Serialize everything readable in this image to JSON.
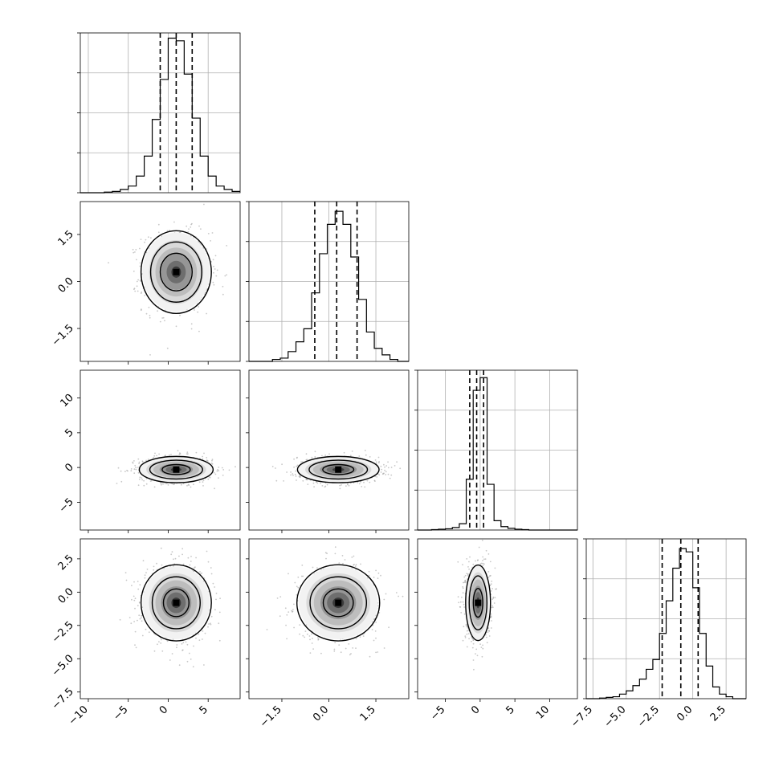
{
  "chart_data": {
    "type": "corner",
    "params": [
      {
        "range": [
          -11,
          9
        ],
        "ticks": [
          -10,
          -5,
          0,
          5
        ],
        "tick_labels": [
          "−10",
          "−5",
          "0",
          "5"
        ],
        "quantiles": [
          -1,
          1,
          3
        ],
        "hist": {
          "edges": [
            -11,
            -10,
            -9,
            -8,
            -7,
            -6,
            -5,
            -4,
            -3,
            -2,
            -1,
            0,
            1,
            2,
            3,
            4,
            5,
            6,
            7,
            8,
            9
          ],
          "counts": [
            0,
            0,
            0,
            1,
            2,
            5,
            10,
            25,
            55,
            110,
            170,
            232,
            228,
            178,
            112,
            55,
            25,
            10,
            5,
            2
          ],
          "max": 235
        }
      },
      {
        "range": [
          -2.55,
          2.55
        ],
        "ticks": [
          -1.5,
          0.0,
          1.5
        ],
        "tick_labels": [
          "−1.5",
          "0.0",
          "1.5"
        ],
        "quantiles": [
          -0.45,
          0.25,
          0.9
        ],
        "hist": {
          "edges": [
            -2.55,
            -2.3,
            -2.05,
            -1.8,
            -1.55,
            -1.3,
            -1.05,
            -0.8,
            -0.55,
            -0.3,
            -0.05,
            0.2,
            0.45,
            0.7,
            0.95,
            1.2,
            1.45,
            1.7,
            1.95,
            2.2,
            2.55
          ],
          "counts": [
            0,
            0,
            0,
            3,
            5,
            15,
            30,
            50,
            105,
            165,
            210,
            230,
            210,
            160,
            95,
            45,
            20,
            10,
            3,
            0
          ],
          "max": 240
        }
      },
      {
        "range": [
          -9,
          14
        ],
        "ticks": [
          -5,
          0,
          5,
          10
        ],
        "tick_labels": [
          "−5",
          "0",
          "5",
          "10"
        ],
        "quantiles": [
          -1.5,
          -0.5,
          0.5
        ],
        "hist": {
          "edges": [
            -9,
            -8,
            -7,
            -6,
            -5,
            -4,
            -3,
            -2,
            -1,
            0,
            1,
            2,
            3,
            4,
            5,
            6,
            7,
            8,
            9,
            10,
            11,
            12,
            13,
            14
          ],
          "counts": [
            0,
            0,
            1,
            2,
            3,
            6,
            15,
            120,
            330,
            360,
            108,
            22,
            8,
            4,
            2,
            1,
            0,
            0,
            0,
            0,
            0,
            0,
            0
          ],
          "max": 370
        }
      },
      {
        "range": [
          -8,
          4
        ],
        "ticks": [
          -7.5,
          -5.0,
          -2.5,
          0.0,
          2.5
        ],
        "tick_labels": [
          "−7.5",
          "−5.0",
          "−2.5",
          "0.0",
          "2.5"
        ],
        "quantiles": [
          -2.3,
          -0.9,
          0.4
        ],
        "hist": {
          "edges": [
            -8,
            -7.5,
            -7,
            -6.5,
            -6,
            -5.5,
            -5,
            -4.5,
            -4,
            -3.5,
            -3,
            -2.5,
            -2,
            -1.5,
            -1,
            -0.5,
            0,
            0.5,
            1,
            1.5,
            2,
            2.5,
            3,
            3.5,
            4
          ],
          "counts": [
            0,
            0,
            1,
            2,
            3,
            7,
            12,
            20,
            30,
            45,
            60,
            100,
            150,
            200,
            230,
            225,
            170,
            100,
            50,
            18,
            7,
            3,
            0,
            0
          ],
          "max": 240
        }
      }
    ],
    "pairs": [
      {
        "row": 1,
        "col": 0,
        "mean": [
          1.0,
          0.3
        ],
        "sd": [
          2.0,
          0.6
        ],
        "levels": [
          1.0,
          1.6,
          2.2
        ]
      },
      {
        "row": 2,
        "col": 0,
        "mean": [
          1.0,
          -0.3
        ],
        "sd": [
          2.2,
          0.9
        ],
        "levels": [
          0.8,
          1.5,
          2.1
        ]
      },
      {
        "row": 2,
        "col": 1,
        "mean": [
          0.3,
          -0.3
        ],
        "sd": [
          0.62,
          0.9
        ],
        "levels": [
          0.8,
          1.5,
          2.1
        ]
      },
      {
        "row": 3,
        "col": 0,
        "mean": [
          1.0,
          -0.8
        ],
        "sd": [
          2.0,
          1.3
        ],
        "levels": [
          0.8,
          1.5,
          2.2
        ]
      },
      {
        "row": 3,
        "col": 1,
        "mean": [
          0.3,
          -0.8
        ],
        "sd": [
          0.6,
          1.3
        ],
        "levels": [
          0.8,
          1.5,
          2.2
        ]
      },
      {
        "row": 3,
        "col": 2,
        "mean": [
          -0.3,
          -0.8
        ],
        "sd": [
          0.85,
          1.35
        ],
        "levels": [
          0.8,
          1.5,
          2.1
        ]
      }
    ]
  }
}
